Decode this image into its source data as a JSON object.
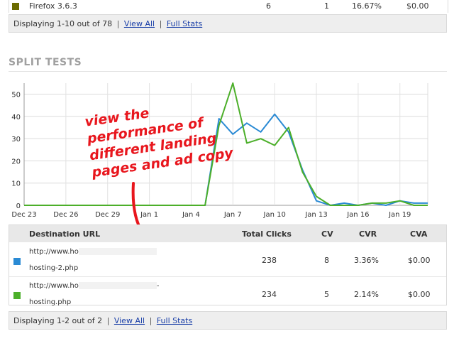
{
  "browsers_table": {
    "row": {
      "name": "Firefox 3.6.3",
      "col1": "6",
      "col2": "1",
      "col3": "16.67%",
      "col4": "$0.00",
      "swatch_color": "#6b6b00"
    },
    "footer": {
      "displaying": "Displaying 1-10 out of 78",
      "view_all": "View All",
      "full_stats": "Full Stats",
      "separator": "|"
    }
  },
  "split_tests": {
    "title": "SPLIT TESTS",
    "annotation": [
      "view the",
      "performance of",
      "different landing",
      "pages and ad copy"
    ],
    "columns": {
      "url": "Destination URL",
      "clicks": "Total Clicks",
      "cv": "CV",
      "cvr": "CVR",
      "cva": "CVA"
    },
    "rows": [
      {
        "url_line1": "http://www.ho",
        "url_line1_tail": "-",
        "url_line2": "hosting-2.php",
        "clicks": "238",
        "cv": "8",
        "cvr": "3.36%",
        "cva": "$0.00",
        "color": "#2a8ad4"
      },
      {
        "url_line1": "http://www.ho",
        "url_line1_tail": "-",
        "url_line2": "hosting.php",
        "clicks": "234",
        "cv": "5",
        "cvr": "2.14%",
        "cva": "$0.00",
        "color": "#4caf2a"
      }
    ],
    "footer": {
      "displaying": "Displaying 1-2 out of 2",
      "view_all": "View All",
      "full_stats": "Full Stats",
      "separator": "|"
    }
  },
  "chart_data": {
    "type": "line",
    "x_tick_labels": [
      "Dec 23",
      "Dec 26",
      "Dec 29",
      "Jan 1",
      "Jan 4",
      "Jan 7",
      "Jan 10",
      "Jan 13",
      "Jan 16",
      "Jan 19"
    ],
    "y_ticks": [
      0,
      10,
      20,
      30,
      40,
      50
    ],
    "ylim": [
      0,
      55
    ],
    "grid": true,
    "x_day_offsets_from_dec23": [
      0,
      3,
      6,
      9,
      12,
      15,
      18,
      21,
      24,
      27
    ],
    "series": [
      {
        "color": "#2a8ad4",
        "points": [
          [
            0,
            0
          ],
          [
            1,
            0
          ],
          [
            2,
            0
          ],
          [
            3,
            0
          ],
          [
            4,
            0
          ],
          [
            5,
            0
          ],
          [
            6,
            0
          ],
          [
            7,
            0
          ],
          [
            8,
            0
          ],
          [
            9,
            0
          ],
          [
            10,
            0
          ],
          [
            11,
            0
          ],
          [
            12,
            0
          ],
          [
            13,
            0
          ],
          [
            14,
            39
          ],
          [
            15,
            32
          ],
          [
            16,
            37
          ],
          [
            17,
            33
          ],
          [
            18,
            41
          ],
          [
            19,
            33
          ],
          [
            20,
            16
          ],
          [
            21,
            2
          ],
          [
            22,
            0
          ],
          [
            23,
            1
          ],
          [
            24,
            0
          ],
          [
            25,
            1
          ],
          [
            26,
            0
          ],
          [
            27,
            2
          ],
          [
            28,
            1
          ],
          [
            29,
            1
          ]
        ]
      },
      {
        "color": "#4caf2a",
        "points": [
          [
            0,
            0
          ],
          [
            1,
            0
          ],
          [
            2,
            0
          ],
          [
            3,
            0
          ],
          [
            4,
            0
          ],
          [
            5,
            0
          ],
          [
            6,
            0
          ],
          [
            7,
            0
          ],
          [
            8,
            0
          ],
          [
            9,
            0
          ],
          [
            10,
            0
          ],
          [
            11,
            0
          ],
          [
            12,
            0
          ],
          [
            13,
            0
          ],
          [
            14,
            36
          ],
          [
            15,
            55
          ],
          [
            16,
            28
          ],
          [
            17,
            30
          ],
          [
            18,
            27
          ],
          [
            19,
            35
          ],
          [
            20,
            15
          ],
          [
            21,
            4
          ],
          [
            22,
            0
          ],
          [
            23,
            0
          ],
          [
            24,
            0
          ],
          [
            25,
            1
          ],
          [
            26,
            1
          ],
          [
            27,
            2
          ],
          [
            28,
            0
          ],
          [
            29,
            0
          ]
        ]
      }
    ]
  }
}
